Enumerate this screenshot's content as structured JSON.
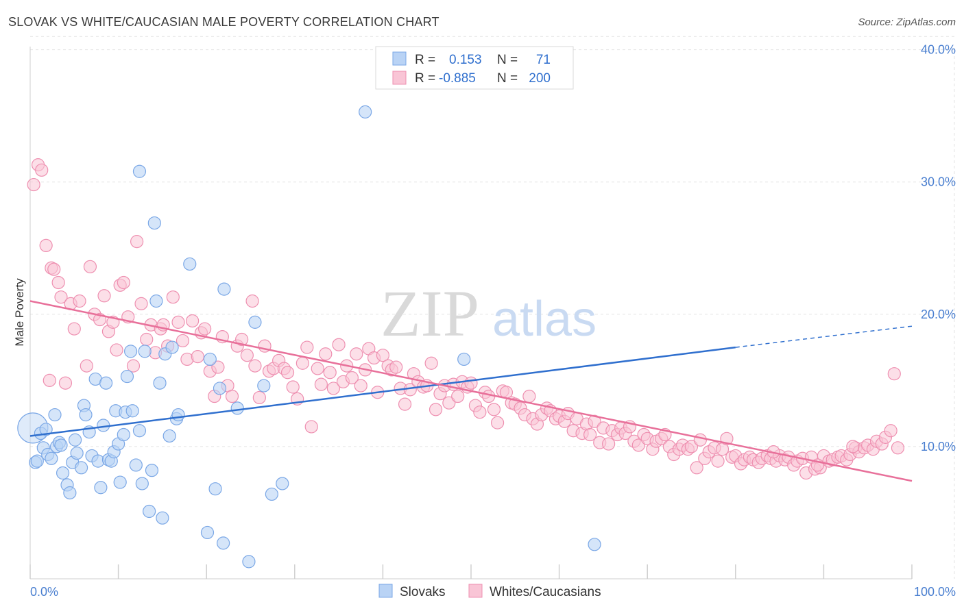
{
  "header": {
    "title": "SLOVAK VS WHITE/CAUCASIAN MALE POVERTY CORRELATION CHART",
    "source": "Source: ZipAtlas.com"
  },
  "legend": {
    "rows": [
      {
        "r_label": "R =",
        "r_value": "0.153",
        "n_label": "N =",
        "n_value": "71"
      },
      {
        "r_label": "R =",
        "r_value": "-0.885",
        "n_label": "N =",
        "n_value": "200"
      }
    ]
  },
  "bottom_legend": [
    "Slovaks",
    "Whites/Caucasians"
  ],
  "watermark": {
    "zip": "ZIP",
    "atlas": "atlas"
  },
  "chart_data": {
    "type": "scatter",
    "title": "SLOVAK VS WHITE/CAUCASIAN MALE POVERTY CORRELATION CHART",
    "xlabel": "",
    "ylabel": "Male Poverty",
    "xlim": [
      0,
      100
    ],
    "ylim": [
      0,
      42
    ],
    "x_tick_labels": [
      "0.0%",
      "100.0%"
    ],
    "y_ticks": [
      10,
      20,
      30,
      40
    ],
    "y_tick_labels": [
      "10.0%",
      "20.0%",
      "30.0%",
      "40.0%"
    ],
    "grid": true,
    "legend_position": "top-center",
    "colors": {
      "slovaks_fill": "#b9d3f5",
      "slovaks_stroke": "#7aa7e6",
      "slovaks_line": "#2f6fce",
      "whites_fill": "#f9c5d6",
      "whites_stroke": "#ee8fb0",
      "whites_line": "#e8709a"
    },
    "series": [
      {
        "name": "Slovaks",
        "trend": {
          "x": [
            0,
            80
          ],
          "y": [
            10.8,
            17.5
          ],
          "dashed_to": [
            100,
            19.1
          ]
        },
        "points": [
          [
            0.3,
            11.4
          ],
          [
            0.6,
            8.8
          ],
          [
            0.8,
            8.9
          ],
          [
            1.2,
            11.0
          ],
          [
            1.5,
            9.9
          ],
          [
            1.8,
            11.3
          ],
          [
            2.0,
            9.4
          ],
          [
            2.4,
            9.1
          ],
          [
            2.8,
            12.4
          ],
          [
            3.0,
            10.0
          ],
          [
            3.3,
            10.3
          ],
          [
            3.7,
            8.0
          ],
          [
            4.2,
            7.1
          ],
          [
            4.5,
            6.5
          ],
          [
            4.8,
            8.8
          ],
          [
            5.1,
            10.5
          ],
          [
            5.3,
            9.5
          ],
          [
            5.8,
            8.4
          ],
          [
            6.1,
            13.1
          ],
          [
            6.3,
            12.4
          ],
          [
            6.7,
            11.1
          ],
          [
            7.0,
            9.3
          ],
          [
            7.4,
            15.1
          ],
          [
            7.7,
            8.9
          ],
          [
            8.0,
            6.9
          ],
          [
            8.3,
            11.6
          ],
          [
            8.6,
            14.8
          ],
          [
            8.9,
            9.0
          ],
          [
            9.2,
            8.9
          ],
          [
            9.5,
            9.6
          ],
          [
            9.7,
            12.7
          ],
          [
            10.0,
            10.2
          ],
          [
            10.2,
            7.3
          ],
          [
            10.6,
            10.9
          ],
          [
            10.8,
            12.6
          ],
          [
            11.0,
            15.3
          ],
          [
            11.4,
            17.2
          ],
          [
            11.6,
            12.7
          ],
          [
            12.0,
            8.6
          ],
          [
            12.4,
            11.2
          ],
          [
            12.7,
            7.2
          ],
          [
            13.0,
            17.2
          ],
          [
            13.5,
            5.1
          ],
          [
            13.8,
            8.2
          ],
          [
            14.1,
            26.9
          ],
          [
            14.3,
            21.0
          ],
          [
            14.7,
            14.8
          ],
          [
            15.0,
            4.6
          ],
          [
            15.3,
            17.0
          ],
          [
            15.8,
            10.8
          ],
          [
            16.1,
            17.5
          ],
          [
            16.6,
            12.1
          ],
          [
            16.8,
            12.4
          ],
          [
            18.1,
            23.8
          ],
          [
            20.1,
            3.5
          ],
          [
            20.4,
            16.6
          ],
          [
            21.0,
            6.8
          ],
          [
            21.5,
            14.4
          ],
          [
            21.9,
            2.7
          ],
          [
            22.0,
            21.9
          ],
          [
            23.5,
            12.9
          ],
          [
            24.8,
            1.3
          ],
          [
            25.5,
            19.4
          ],
          [
            26.5,
            14.6
          ],
          [
            27.4,
            6.4
          ],
          [
            28.6,
            7.2
          ],
          [
            38.0,
            35.3
          ],
          [
            12.4,
            30.8
          ],
          [
            49.2,
            16.6
          ],
          [
            64.0,
            2.6
          ],
          [
            3.5,
            10.1
          ]
        ]
      },
      {
        "name": "Whites/Caucasians",
        "trend": {
          "x": [
            0,
            100
          ],
          "y": [
            21.0,
            7.4
          ]
        },
        "points": [
          [
            0.4,
            29.8
          ],
          [
            0.9,
            31.3
          ],
          [
            1.3,
            30.9
          ],
          [
            1.8,
            25.2
          ],
          [
            2.2,
            15.0
          ],
          [
            2.4,
            23.5
          ],
          [
            2.7,
            23.4
          ],
          [
            3.2,
            22.4
          ],
          [
            3.5,
            21.3
          ],
          [
            4.0,
            14.8
          ],
          [
            4.6,
            20.8
          ],
          [
            5.0,
            18.9
          ],
          [
            5.6,
            21.0
          ],
          [
            6.4,
            16.1
          ],
          [
            6.8,
            23.6
          ],
          [
            7.3,
            20.0
          ],
          [
            7.9,
            19.6
          ],
          [
            8.4,
            21.4
          ],
          [
            8.9,
            18.7
          ],
          [
            9.4,
            19.4
          ],
          [
            9.8,
            17.3
          ],
          [
            10.2,
            22.2
          ],
          [
            10.6,
            22.4
          ],
          [
            11.1,
            19.8
          ],
          [
            11.7,
            16.1
          ],
          [
            12.1,
            25.5
          ],
          [
            12.6,
            20.8
          ],
          [
            13.2,
            18.1
          ],
          [
            13.7,
            19.2
          ],
          [
            14.2,
            17.1
          ],
          [
            14.8,
            18.9
          ],
          [
            15.1,
            19.2
          ],
          [
            15.6,
            17.6
          ],
          [
            16.2,
            21.3
          ],
          [
            16.8,
            19.4
          ],
          [
            17.3,
            18.0
          ],
          [
            17.8,
            16.6
          ],
          [
            18.4,
            19.5
          ],
          [
            19.0,
            16.8
          ],
          [
            19.4,
            18.6
          ],
          [
            19.8,
            18.9
          ],
          [
            20.4,
            15.7
          ],
          [
            20.9,
            13.8
          ],
          [
            21.3,
            16.0
          ],
          [
            21.8,
            18.3
          ],
          [
            22.4,
            14.6
          ],
          [
            22.9,
            13.8
          ],
          [
            23.5,
            17.6
          ],
          [
            24.0,
            18.1
          ],
          [
            24.6,
            16.9
          ],
          [
            25.2,
            21.0
          ],
          [
            25.5,
            16.1
          ],
          [
            26.0,
            13.7
          ],
          [
            26.6,
            17.6
          ],
          [
            27.1,
            15.7
          ],
          [
            27.6,
            15.9
          ],
          [
            28.2,
            16.5
          ],
          [
            28.8,
            15.9
          ],
          [
            29.2,
            15.6
          ],
          [
            29.8,
            14.5
          ],
          [
            30.3,
            13.6
          ],
          [
            30.9,
            16.3
          ],
          [
            31.4,
            17.5
          ],
          [
            31.9,
            11.5
          ],
          [
            32.6,
            15.9
          ],
          [
            33.0,
            14.7
          ],
          [
            33.5,
            17.0
          ],
          [
            34.0,
            15.6
          ],
          [
            34.4,
            14.4
          ],
          [
            35.0,
            17.7
          ],
          [
            35.5,
            14.9
          ],
          [
            35.9,
            16.1
          ],
          [
            36.5,
            15.2
          ],
          [
            37.0,
            17.0
          ],
          [
            37.5,
            14.6
          ],
          [
            38.0,
            15.8
          ],
          [
            38.4,
            17.4
          ],
          [
            39.0,
            16.7
          ],
          [
            39.4,
            14.1
          ],
          [
            40.0,
            16.9
          ],
          [
            40.6,
            16.1
          ],
          [
            41.0,
            15.8
          ],
          [
            41.5,
            16.0
          ],
          [
            42.0,
            14.4
          ],
          [
            42.5,
            13.2
          ],
          [
            43.1,
            14.3
          ],
          [
            43.5,
            15.5
          ],
          [
            44.0,
            14.9
          ],
          [
            44.6,
            14.5
          ],
          [
            45.0,
            14.6
          ],
          [
            45.5,
            16.3
          ],
          [
            46.0,
            12.8
          ],
          [
            46.5,
            14.0
          ],
          [
            47.0,
            14.6
          ],
          [
            47.5,
            13.3
          ],
          [
            48.0,
            14.7
          ],
          [
            48.5,
            13.8
          ],
          [
            49.0,
            14.9
          ],
          [
            49.6,
            14.5
          ],
          [
            50.0,
            14.8
          ],
          [
            50.5,
            13.1
          ],
          [
            51.0,
            12.6
          ],
          [
            51.6,
            14.1
          ],
          [
            52.0,
            13.8
          ],
          [
            52.6,
            12.8
          ],
          [
            53.0,
            11.8
          ],
          [
            53.6,
            14.2
          ],
          [
            54.0,
            14.1
          ],
          [
            54.6,
            13.3
          ],
          [
            55.0,
            13.2
          ],
          [
            55.6,
            12.9
          ],
          [
            56.1,
            12.4
          ],
          [
            56.6,
            13.8
          ],
          [
            57.0,
            12.1
          ],
          [
            57.5,
            11.7
          ],
          [
            58.0,
            12.4
          ],
          [
            58.6,
            12.9
          ],
          [
            59.0,
            12.7
          ],
          [
            59.6,
            12.1
          ],
          [
            60.0,
            12.3
          ],
          [
            60.6,
            11.9
          ],
          [
            61.0,
            12.5
          ],
          [
            61.6,
            11.2
          ],
          [
            62.0,
            12.1
          ],
          [
            62.6,
            11.0
          ],
          [
            63.1,
            11.7
          ],
          [
            63.5,
            10.9
          ],
          [
            64.0,
            11.9
          ],
          [
            64.6,
            10.3
          ],
          [
            65.0,
            11.4
          ],
          [
            65.6,
            10.2
          ],
          [
            66.0,
            11.2
          ],
          [
            66.6,
            10.9
          ],
          [
            67.0,
            11.4
          ],
          [
            67.5,
            11.0
          ],
          [
            68.0,
            11.5
          ],
          [
            68.5,
            10.4
          ],
          [
            69.0,
            10.1
          ],
          [
            69.6,
            10.9
          ],
          [
            70.0,
            10.6
          ],
          [
            70.6,
            9.8
          ],
          [
            71.0,
            10.4
          ],
          [
            71.6,
            10.6
          ],
          [
            72.0,
            10.9
          ],
          [
            72.5,
            10.0
          ],
          [
            73.0,
            9.4
          ],
          [
            73.6,
            9.8
          ],
          [
            74.0,
            10.1
          ],
          [
            74.6,
            9.8
          ],
          [
            75.0,
            10.0
          ],
          [
            75.6,
            8.4
          ],
          [
            76.0,
            10.5
          ],
          [
            76.5,
            9.1
          ],
          [
            77.0,
            9.6
          ],
          [
            77.6,
            9.9
          ],
          [
            78.0,
            8.9
          ],
          [
            78.5,
            9.8
          ],
          [
            79.0,
            10.6
          ],
          [
            79.6,
            9.2
          ],
          [
            80.0,
            9.3
          ],
          [
            80.6,
            8.7
          ],
          [
            81.0,
            9.0
          ],
          [
            81.6,
            9.2
          ],
          [
            82.0,
            9.0
          ],
          [
            82.6,
            8.8
          ],
          [
            83.0,
            9.1
          ],
          [
            83.6,
            9.3
          ],
          [
            84.0,
            9.1
          ],
          [
            84.6,
            8.9
          ],
          [
            85.0,
            9.3
          ],
          [
            85.6,
            9.0
          ],
          [
            86.0,
            9.2
          ],
          [
            86.6,
            8.6
          ],
          [
            87.0,
            8.9
          ],
          [
            87.6,
            9.1
          ],
          [
            88.0,
            8.0
          ],
          [
            88.6,
            9.2
          ],
          [
            89.0,
            8.3
          ],
          [
            89.6,
            8.4
          ],
          [
            90.0,
            9.3
          ],
          [
            90.6,
            8.9
          ],
          [
            91.0,
            9.0
          ],
          [
            91.6,
            9.2
          ],
          [
            92.0,
            9.3
          ],
          [
            92.6,
            9.0
          ],
          [
            93.0,
            9.4
          ],
          [
            93.6,
            9.9
          ],
          [
            94.0,
            9.6
          ],
          [
            94.6,
            9.9
          ],
          [
            95.0,
            10.1
          ],
          [
            95.6,
            9.8
          ],
          [
            96.0,
            10.4
          ],
          [
            96.6,
            10.2
          ],
          [
            97.0,
            10.7
          ],
          [
            97.6,
            11.2
          ],
          [
            98.0,
            15.5
          ],
          [
            98.4,
            9.9
          ],
          [
            93.3,
            10.0
          ],
          [
            89.3,
            8.6
          ],
          [
            84.3,
            9.6
          ]
        ]
      }
    ]
  }
}
